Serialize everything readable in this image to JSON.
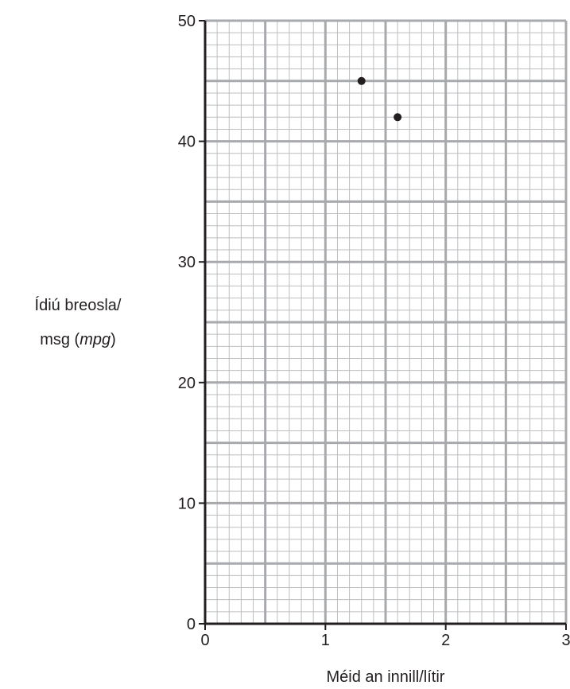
{
  "chart_data": {
    "type": "scatter",
    "title": "",
    "xlabel": "Méid an innill/lítir",
    "ylabel_line1": "Ídiú breosla/",
    "ylabel_line2_prefix": "msg (",
    "ylabel_line2_italic": "mpg",
    "ylabel_line2_suffix": ")",
    "xlim": [
      0,
      3
    ],
    "ylim": [
      0,
      50
    ],
    "x_ticks": [
      0,
      1,
      2,
      3
    ],
    "y_ticks": [
      0,
      10,
      20,
      30,
      40,
      50
    ],
    "grid": true,
    "points": [
      {
        "x": 1.3,
        "y": 45
      },
      {
        "x": 1.6,
        "y": 42
      }
    ],
    "colors": {
      "axis": "#231f20",
      "major_grid": "#a7a9ac",
      "minor_grid": "#bcbec0",
      "point": "#231f20"
    }
  }
}
